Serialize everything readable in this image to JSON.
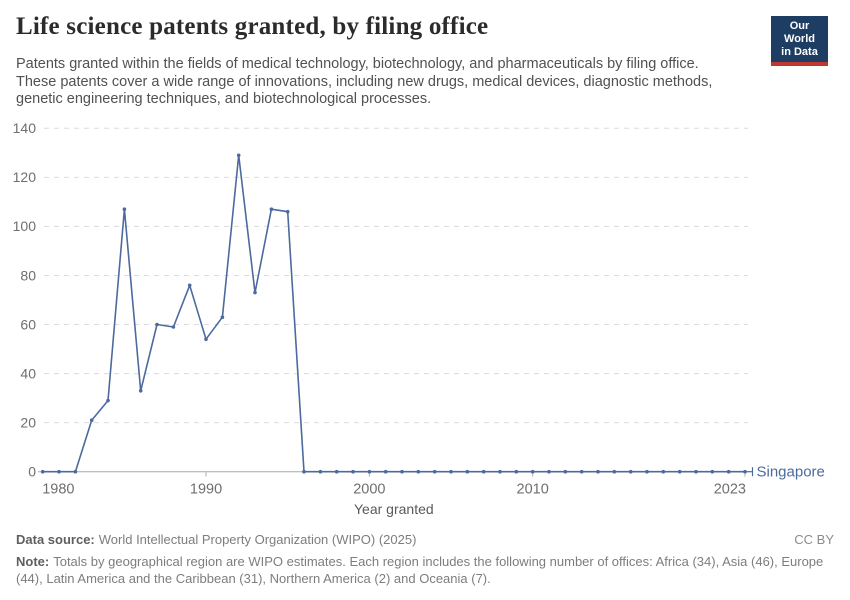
{
  "header": {
    "title": "Life science patents granted, by filing office",
    "subtitle_lines": [
      "Patents granted within the fields of medical technology, biotechnology, and pharmaceuticals by filing office.",
      "These patents cover a wide range of innovations, including new drugs, medical devices, diagnostic methods,",
      "genetic engineering techniques, and biotechnological processes."
    ],
    "logo": {
      "line1": "Our World",
      "line2": "in Data",
      "bg_color": "#1d3d63",
      "accent_color": "#c0372f"
    }
  },
  "chart_data": {
    "type": "line",
    "title": "Life science patents granted, by filing office",
    "xlabel": "Year granted",
    "ylabel": "",
    "ylim": [
      0,
      140
    ],
    "yticks": [
      0,
      20,
      40,
      60,
      80,
      100,
      120,
      140
    ],
    "xticks": [
      1980,
      1990,
      2000,
      2010,
      2023
    ],
    "grid": "horizontal-dashed",
    "legend_position": "entity label at end of line",
    "x": [
      1980,
      1981,
      1982,
      1983,
      1984,
      1985,
      1986,
      1987,
      1988,
      1989,
      1990,
      1991,
      1992,
      1993,
      1994,
      1995,
      1996,
      1997,
      1998,
      1999,
      2000,
      2001,
      2002,
      2003,
      2004,
      2005,
      2006,
      2007,
      2008,
      2009,
      2010,
      2011,
      2012,
      2013,
      2014,
      2015,
      2016,
      2017,
      2018,
      2019,
      2020,
      2021,
      2022,
      2023
    ],
    "series": [
      {
        "name": "Singapore",
        "color": "#4C6A9C",
        "values": [
          0,
          0,
          0,
          21,
          29,
          107,
          33,
          60,
          59,
          76,
          54,
          63,
          129,
          73,
          107,
          106,
          0,
          0,
          0,
          0,
          0,
          0,
          0,
          0,
          0,
          0,
          0,
          0,
          0,
          0,
          0,
          0,
          0,
          0,
          0,
          0,
          0,
          0,
          0,
          0,
          0,
          0,
          0,
          0
        ]
      }
    ],
    "axis_text_color": "#6f6f6f",
    "gridline_color": "#dcdcdc",
    "axis_line_color": "#a8a8a8"
  },
  "footer": {
    "data_source_label": "Data source:",
    "data_source": "World Intellectual Property Organization (WIPO) (2025)",
    "license": "CC BY",
    "note_label": "Note:",
    "note_lines": [
      "Totals by geographical region are WIPO estimates. Each region includes the following number of offices: Africa (34), Asia (46), Europe",
      "(44), Latin America and the Caribbean (31), Northern America (2) and Oceania (7)."
    ]
  }
}
